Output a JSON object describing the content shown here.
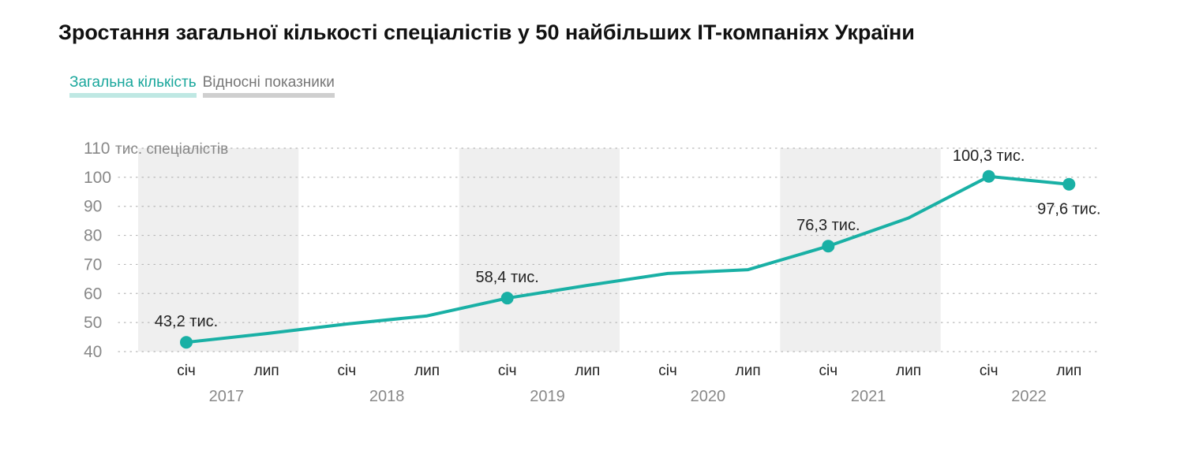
{
  "title": "Зростання загальної кількості спеціалістів у 50 найбільших IT-компаніях України",
  "tabs": [
    {
      "label": "Загальна кількість",
      "active": true
    },
    {
      "label": "Відносні показники",
      "active": false
    }
  ],
  "colors": {
    "line": "#19b0a5",
    "band": "#efefef",
    "grid": "#b8b8b8",
    "axis_text": "#888888",
    "label_text": "#222222"
  },
  "chart_data": {
    "type": "line",
    "ylabel": "тис. спеціалістів",
    "ylim": [
      40,
      110
    ],
    "yticks": [
      40,
      50,
      60,
      70,
      80,
      90,
      100,
      110
    ],
    "years": [
      "2017",
      "2018",
      "2019",
      "2020",
      "2021",
      "2022"
    ],
    "month_labels": [
      "січ",
      "лип",
      "січ",
      "лип",
      "січ",
      "лип",
      "січ",
      "лип",
      "січ",
      "лип",
      "січ",
      "лип"
    ],
    "shaded_years": [
      "2017",
      "2019",
      "2021"
    ],
    "grid": true,
    "series": [
      {
        "values": [
          43.2,
          46.2,
          49.5,
          52.3,
          58.4,
          62.8,
          66.9,
          68.2,
          76.3,
          86.0,
          100.3,
          97.6
        ]
      }
    ],
    "annotations": [
      {
        "index": 0,
        "text": "43,2 тис.",
        "position": "above"
      },
      {
        "index": 4,
        "text": "58,4 тис.",
        "position": "above"
      },
      {
        "index": 8,
        "text": "76,3 тис.",
        "position": "above"
      },
      {
        "index": 10,
        "text": "100,3 тис.",
        "position": "above"
      },
      {
        "index": 11,
        "text": "97,6 тис.",
        "position": "below"
      }
    ]
  }
}
